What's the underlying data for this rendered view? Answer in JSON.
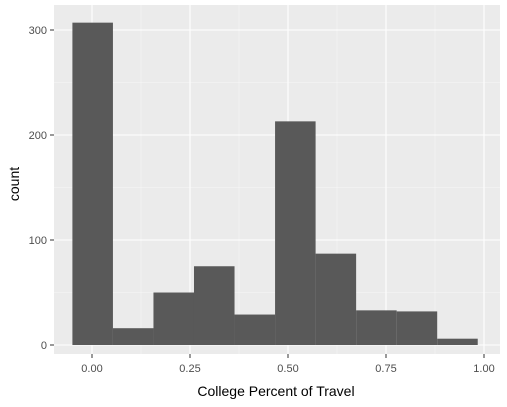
{
  "chart_data": {
    "type": "histogram",
    "title": "",
    "xlabel": "College Percent of Travel",
    "ylabel": "count",
    "xlim": [
      -0.05,
      0.99
    ],
    "ylim": [
      0,
      307
    ],
    "x_ticks": [
      "0.00",
      "0.25",
      "0.50",
      "0.75",
      "1.00"
    ],
    "x_tick_values": [
      0.0,
      0.25,
      0.5,
      0.75,
      1.0
    ],
    "y_ticks": [
      "0",
      "100",
      "200",
      "300"
    ],
    "y_tick_values": [
      0,
      100,
      200,
      300
    ],
    "bin_edges": [
      -0.05,
      0.0534,
      0.1568,
      0.2602,
      0.3636,
      0.467,
      0.5704,
      0.6738,
      0.7772,
      0.8806,
      0.984
    ],
    "counts": [
      307,
      16,
      50,
      75,
      29,
      213,
      87,
      33,
      32,
      6
    ],
    "bar_color": "#595959",
    "panel_color": "#ebebeb",
    "grid": true
  }
}
